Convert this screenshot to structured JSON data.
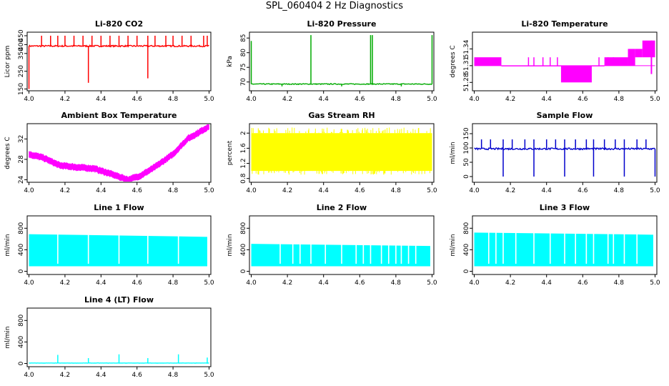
{
  "figure_title": "SPL_060404  2 Hz Diagnostics",
  "chart_data": [
    {
      "id": "co2",
      "type": "line",
      "title": "Li-820 CO2",
      "ylabel": "Licor ppm",
      "color": "#ff0000",
      "xlim": [
        3.99,
        5.01
      ],
      "ylim": [
        140,
        470
      ],
      "xticks": [
        "4.0",
        "4.2",
        "4.4",
        "4.6",
        "4.8",
        "5.0"
      ],
      "yticks": [
        150,
        250,
        350,
        400,
        450
      ],
      "series": [
        {
          "name": "CO2",
          "kind": "spiky",
          "baseline": 392,
          "noise": 4,
          "x_start": 4.0,
          "x_end": 5.0,
          "spike_up_x": [
            4.07,
            4.12,
            4.16,
            4.2,
            4.25,
            4.3,
            4.35,
            4.4,
            4.45,
            4.5,
            4.55,
            4.6,
            4.66,
            4.7,
            4.76,
            4.8,
            4.85,
            4.9,
            4.97,
            4.99
          ],
          "spike_up_value": 450,
          "spike_down_x": [
            4.0,
            4.33,
            4.66
          ],
          "spike_down_value": [
            150,
            185,
            210
          ]
        }
      ]
    },
    {
      "id": "pressure",
      "type": "line",
      "title": "Li-820 Pressure",
      "ylabel": "kPa",
      "color": "#00aa00",
      "xlim": [
        3.99,
        5.01
      ],
      "ylim": [
        67,
        87
      ],
      "xticks": [
        "4.0",
        "4.2",
        "4.4",
        "4.6",
        "4.8",
        "5.0"
      ],
      "yticks": [
        70,
        75,
        80,
        85
      ],
      "series": [
        {
          "name": "Pressure",
          "kind": "spiky",
          "baseline": 69.3,
          "noise": 0.15,
          "x_start": 4.0,
          "x_end": 5.0,
          "spike_up_x": [
            4.0,
            4.33,
            4.66,
            4.67,
            5.0
          ],
          "spike_up_value": [
            84,
            86,
            86,
            86,
            86
          ],
          "spike_down_x": [
            4.17,
            4.5,
            4.83
          ],
          "spike_down_value": 68.5
        }
      ]
    },
    {
      "id": "temp",
      "type": "line",
      "title": "Li-820 Temperature",
      "ylabel": "degrees C",
      "color": "#ff00ff",
      "xlim": [
        3.99,
        5.01
      ],
      "ylim": [
        51.265,
        51.37
      ],
      "xticks": [
        "4.0",
        "4.2",
        "4.4",
        "4.6",
        "4.8",
        "5.0"
      ],
      "yticks": [
        51.28,
        51.31,
        51.34
      ],
      "series": [
        {
          "name": "Temperature",
          "kind": "steps",
          "segments": [
            [
              4.0,
              4.15,
              51.31,
              51.325
            ],
            [
              4.15,
              4.48,
              51.31,
              51.31
            ],
            [
              4.48,
              4.65,
              51.28,
              51.31
            ],
            [
              4.65,
              4.72,
              51.31,
              51.31
            ],
            [
              4.72,
              4.85,
              51.31,
              51.325
            ],
            [
              4.85,
              4.89,
              51.31,
              51.34
            ],
            [
              4.89,
              4.93,
              51.325,
              51.34
            ],
            [
              4.93,
              5.0,
              51.325,
              51.355
            ]
          ]
        }
      ]
    },
    {
      "id": "ambient",
      "type": "line",
      "title": "Ambient Box Temperature",
      "ylabel": "degrees C",
      "color": "#ff00ff",
      "xlim": [
        3.99,
        5.01
      ],
      "ylim": [
        23.5,
        35
      ],
      "xticks": [
        "4.0",
        "4.2",
        "4.4",
        "4.6",
        "4.8",
        "5.0"
      ],
      "yticks": [
        24,
        28,
        32
      ],
      "series": [
        {
          "name": "Ambient",
          "kind": "band",
          "width": 0.6,
          "x": [
            4.0,
            4.08,
            4.17,
            4.28,
            4.36,
            4.45,
            4.55,
            4.62,
            4.7,
            4.8,
            4.88,
            4.94,
            5.0
          ],
          "y": [
            29,
            28.3,
            26.8,
            26.4,
            26.2,
            25.2,
            24,
            24.8,
            26.5,
            29,
            32,
            33.2,
            34.5
          ]
        }
      ]
    },
    {
      "id": "rh",
      "type": "line",
      "title": "Gas Stream RH",
      "ylabel": "percent",
      "color": "#ffff00",
      "xlim": [
        3.99,
        5.01
      ],
      "ylim": [
        0.7,
        2.25
      ],
      "xticks": [
        "4.0",
        "4.2",
        "4.4",
        "4.6",
        "4.8",
        "5.0"
      ],
      "yticks": [
        0.8,
        1.2,
        1.6,
        2.0
      ],
      "series": [
        {
          "name": "RH",
          "kind": "noise",
          "x_start": 4.0,
          "x_end": 5.0,
          "low": 1.0,
          "high": 2.0,
          "extreme_low": 0.9,
          "extreme_high": 2.15
        }
      ]
    },
    {
      "id": "sample",
      "type": "line",
      "title": "Sample Flow",
      "ylabel": "ml/min",
      "color": "#0000cc",
      "xlim": [
        3.99,
        5.01
      ],
      "ylim": [
        -20,
        185
      ],
      "xticks": [
        "4.0",
        "4.2",
        "4.4",
        "4.6",
        "4.8",
        "5.0"
      ],
      "yticks": [
        0,
        50,
        100,
        150
      ],
      "series": [
        {
          "name": "Sample",
          "kind": "spiky",
          "baseline": 97,
          "noise": 3,
          "x_start": 4.0,
          "x_end": 5.0,
          "spike_up_x": [
            4.04,
            4.09,
            4.16,
            4.21,
            4.28,
            4.33,
            4.4,
            4.45,
            4.5,
            4.56,
            4.62,
            4.66,
            4.72,
            4.78,
            4.83,
            4.9,
            4.95
          ],
          "spike_up_value": 130,
          "spike_down_x": [
            4.16,
            4.33,
            4.5,
            4.66,
            4.83,
            5.0
          ],
          "spike_down_value": 0
        }
      ]
    },
    {
      "id": "line1",
      "type": "line",
      "title": "Line 1 Flow",
      "ylabel": "ml/min",
      "color": "#00ffff",
      "xlim": [
        3.99,
        5.01
      ],
      "ylim": [
        -60,
        1030
      ],
      "xticks": [
        "4.0",
        "4.2",
        "4.4",
        "4.6",
        "4.8",
        "5.0"
      ],
      "yticks": [
        0,
        400,
        800
      ],
      "series": [
        {
          "name": "Line1",
          "kind": "block",
          "low": 100,
          "high_start": 690,
          "high_end": 640,
          "x_start": 4.0,
          "x_end": 4.99,
          "gaps": [
            4.16,
            4.33,
            4.5,
            4.66,
            4.83
          ]
        }
      ]
    },
    {
      "id": "line2",
      "type": "line",
      "title": "Line 2 Flow",
      "ylabel": "ml/min",
      "color": "#00ffff",
      "xlim": [
        3.99,
        5.01
      ],
      "ylim": [
        -60,
        1030
      ],
      "xticks": [
        "4.0",
        "4.2",
        "4.4",
        "4.6",
        "4.8",
        "5.0"
      ],
      "yticks": [
        0,
        400,
        800
      ],
      "series": [
        {
          "name": "Line2",
          "kind": "block",
          "low": 100,
          "high_start": 510,
          "high_end": 470,
          "x_start": 4.0,
          "x_end": 4.99,
          "gaps": [
            4.16,
            4.23,
            4.27,
            4.33,
            4.41,
            4.5,
            4.58,
            4.62,
            4.66,
            4.72,
            4.76,
            4.8,
            4.83,
            4.87,
            4.91
          ]
        }
      ]
    },
    {
      "id": "line3",
      "type": "line",
      "title": "Line 3 Flow",
      "ylabel": "ml/min",
      "color": "#00ffff",
      "xlim": [
        3.99,
        5.01
      ],
      "ylim": [
        -60,
        1030
      ],
      "xticks": [
        "4.0",
        "4.2",
        "4.4",
        "4.6",
        "4.8",
        "5.0"
      ],
      "yticks": [
        0,
        400,
        800
      ],
      "series": [
        {
          "name": "Line3",
          "kind": "block",
          "low": 100,
          "high_start": 720,
          "high_end": 680,
          "x_start": 4.0,
          "x_end": 4.99,
          "gaps": [
            4.08,
            4.12,
            4.16,
            4.23,
            4.33,
            4.42,
            4.5,
            4.56,
            4.62,
            4.66,
            4.74,
            4.77,
            4.83,
            4.9
          ]
        }
      ]
    },
    {
      "id": "line4",
      "type": "line",
      "title": "Line 4 (LT) Flow",
      "ylabel": "ml/min",
      "color": "#00ffff",
      "xlim": [
        3.99,
        5.01
      ],
      "ylim": [
        -60,
        1030
      ],
      "xticks": [
        "4.0",
        "4.2",
        "4.4",
        "4.6",
        "4.8",
        "5.0"
      ],
      "yticks": [
        0,
        400,
        800
      ],
      "series": [
        {
          "name": "Line4",
          "kind": "spiky",
          "baseline": 8,
          "noise": 2,
          "x_start": 4.0,
          "x_end": 5.0,
          "spike_up_x": [
            4.16,
            4.33,
            4.5,
            4.66,
            4.83,
            4.99
          ],
          "spike_up_value": [
            160,
            100,
            170,
            100,
            170,
            110
          ],
          "spike_down_x": [],
          "spike_down_value": 0
        }
      ]
    }
  ]
}
